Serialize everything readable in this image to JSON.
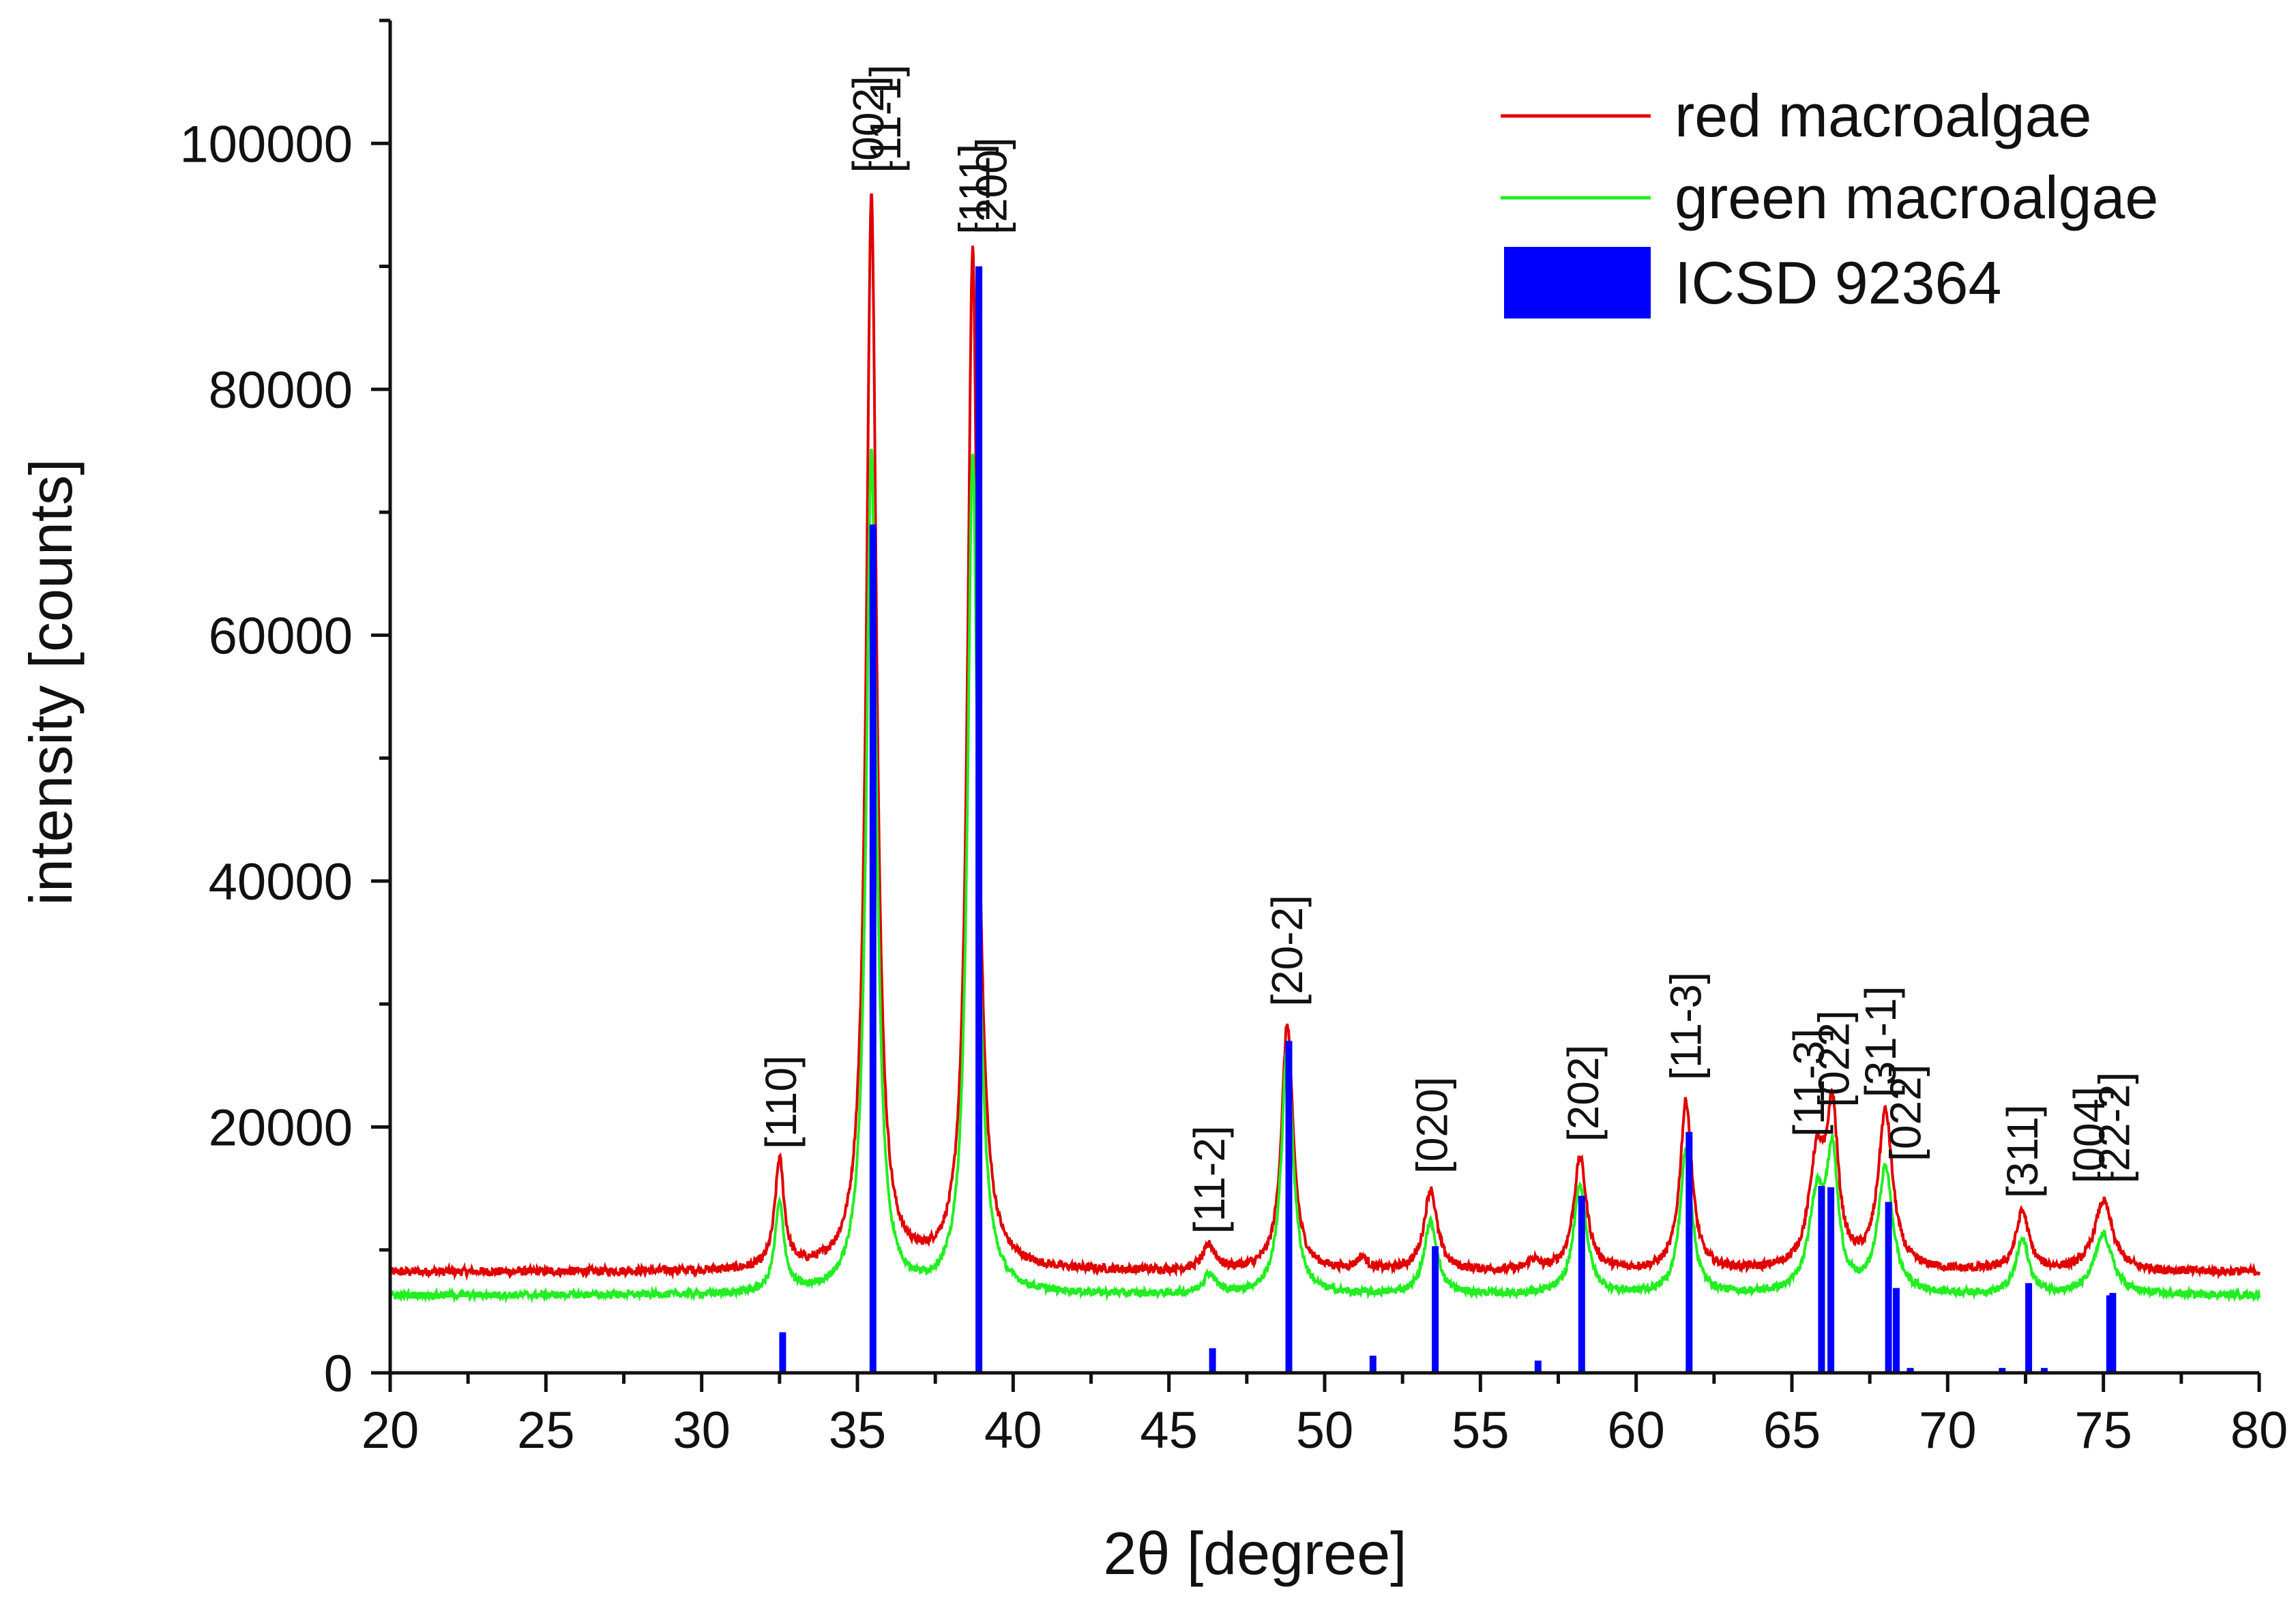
{
  "chart_data": {
    "type": "line",
    "title": "",
    "xlabel": "2θ [degree]",
    "ylabel": "intensity [counts]",
    "xlim": [
      20,
      80
    ],
    "ylim": [
      0,
      110000
    ],
    "x_ticks": [
      20,
      25,
      30,
      35,
      40,
      45,
      50,
      55,
      60,
      65,
      70,
      75,
      80
    ],
    "y_ticks": [
      0,
      20000,
      40000,
      60000,
      80000,
      100000
    ],
    "grid": false,
    "legend_position": "top-right",
    "series": [
      {
        "name": "red macroalgae",
        "kind": "line",
        "color": "#e00000",
        "baseline": 8200,
        "noise": 350,
        "peaks": [
          {
            "x": 32.5,
            "y": 17000,
            "w": 0.18
          },
          {
            "x": 35.45,
            "y": 95500,
            "w": 0.2
          },
          {
            "x": 38.7,
            "y": 91000,
            "w": 0.2
          },
          {
            "x": 46.3,
            "y": 10200,
            "w": 0.25
          },
          {
            "x": 48.8,
            "y": 28300,
            "w": 0.22
          },
          {
            "x": 51.2,
            "y": 9200,
            "w": 0.2
          },
          {
            "x": 53.4,
            "y": 14800,
            "w": 0.25
          },
          {
            "x": 56.7,
            "y": 9000,
            "w": 0.2
          },
          {
            "x": 58.2,
            "y": 17400,
            "w": 0.25
          },
          {
            "x": 61.6,
            "y": 22000,
            "w": 0.23
          },
          {
            "x": 65.8,
            "y": 16900,
            "w": 0.3
          },
          {
            "x": 66.3,
            "y": 20200,
            "w": 0.22
          },
          {
            "x": 68.0,
            "y": 21000,
            "w": 0.28
          },
          {
            "x": 72.4,
            "y": 13000,
            "w": 0.25
          },
          {
            "x": 75.0,
            "y": 13900,
            "w": 0.35
          }
        ]
      },
      {
        "name": "green macroalgae",
        "kind": "line",
        "color": "#22ee22",
        "baseline": 6300,
        "noise": 300,
        "peaks": [
          {
            "x": 32.5,
            "y": 13500,
            "w": 0.18
          },
          {
            "x": 35.45,
            "y": 75000,
            "w": 0.2
          },
          {
            "x": 38.7,
            "y": 74500,
            "w": 0.2
          },
          {
            "x": 46.3,
            "y": 7900,
            "w": 0.25
          },
          {
            "x": 48.8,
            "y": 26500,
            "w": 0.22
          },
          {
            "x": 53.4,
            "y": 12200,
            "w": 0.25
          },
          {
            "x": 58.2,
            "y": 15200,
            "w": 0.25
          },
          {
            "x": 61.6,
            "y": 18000,
            "w": 0.23
          },
          {
            "x": 65.8,
            "y": 13800,
            "w": 0.3
          },
          {
            "x": 66.3,
            "y": 16800,
            "w": 0.22
          },
          {
            "x": 68.0,
            "y": 16500,
            "w": 0.28
          },
          {
            "x": 72.4,
            "y": 10700,
            "w": 0.25
          },
          {
            "x": 75.0,
            "y": 11200,
            "w": 0.35
          }
        ]
      },
      {
        "name": "ICSD 92364",
        "kind": "stick",
        "color": "#0000ff",
        "x": [
          32.6,
          35.5,
          38.9,
          46.4,
          48.85,
          51.55,
          53.55,
          56.85,
          58.25,
          61.7,
          65.95,
          66.25,
          68.1,
          68.35,
          68.8,
          71.75,
          72.6,
          73.1,
          75.2,
          75.3
        ],
        "values": [
          3300,
          69000,
          90000,
          2000,
          27000,
          1400,
          10300,
          1000,
          14400,
          19600,
          15200,
          15100,
          13900,
          6900,
          400,
          400,
          7300,
          400,
          6300,
          6500
        ]
      }
    ],
    "annotations": [
      {
        "text": "[110]",
        "x": 32.55,
        "y": 18200
      },
      {
        "text": "[002]",
        "x": 35.35,
        "y": 97600
      },
      {
        "text": "[11-1]",
        "x": 35.9,
        "y": 97600
      },
      {
        "text": "[111]",
        "x": 38.75,
        "y": 92600
      },
      {
        "text": "[200]",
        "x": 39.3,
        "y": 92600
      },
      {
        "text": "[11-2]",
        "x": 46.3,
        "y": 11300
      },
      {
        "text": "[20-2]",
        "x": 48.8,
        "y": 29800
      },
      {
        "text": "[020]",
        "x": 53.45,
        "y": 16200
      },
      {
        "text": "[202]",
        "x": 58.3,
        "y": 18800
      },
      {
        "text": "[11-3]",
        "x": 61.6,
        "y": 23800
      },
      {
        "text": "[11-3]",
        "x": 65.55,
        "y": 19200
      },
      {
        "text": "[022]",
        "x": 66.35,
        "y": 21600
      },
      {
        "text": "[31-1]",
        "x": 67.85,
        "y": 22400
      },
      {
        "text": "[022]",
        "x": 68.65,
        "y": 17200
      },
      {
        "text": "[311]",
        "x": 72.4,
        "y": 14200
      },
      {
        "text": "[004]",
        "x": 74.55,
        "y": 15400
      },
      {
        "text": "[22-2]",
        "x": 75.35,
        "y": 15400
      }
    ]
  }
}
